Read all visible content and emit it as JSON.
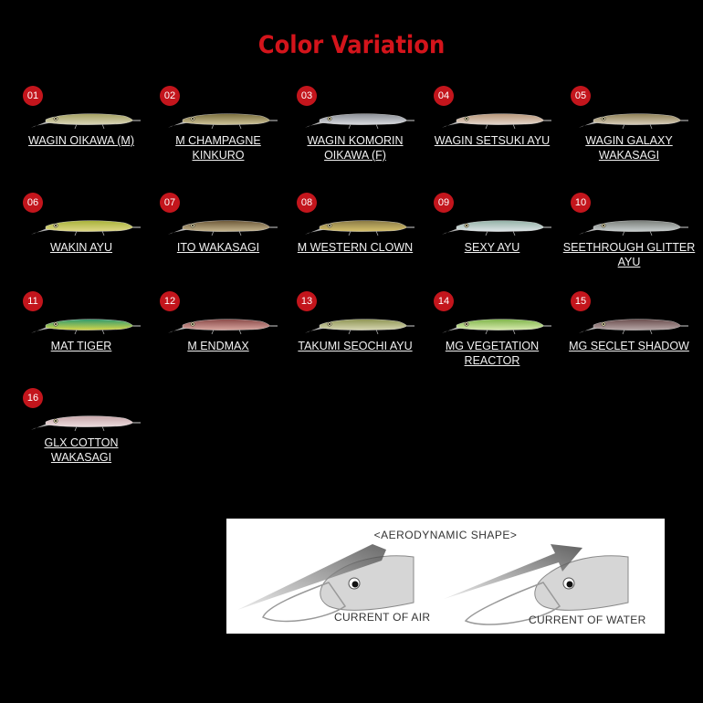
{
  "title": "Color Variation",
  "items": [
    {
      "num": "01",
      "name": "WAGIN OIKAWA (M)",
      "back": "#a4a060",
      "belly": "#d9d5b8"
    },
    {
      "num": "02",
      "name": "M CHAMPAGNE KINKURO",
      "back": "#7a6e3c",
      "belly": "#cfc49a"
    },
    {
      "num": "03",
      "name": "WAGIN KOMORIN OIKAWA (F)",
      "back": "#8a8e95",
      "belly": "#d9dbe0"
    },
    {
      "num": "04",
      "name": "WAGIN SETSUKI AYU",
      "back": "#b89678",
      "belly": "#e4d6cc"
    },
    {
      "num": "05",
      "name": "WAGIN GALAXY WAKASAGI",
      "back": "#8e8055",
      "belly": "#d8cdb9"
    },
    {
      "num": "06",
      "name": "WAKIN AYU",
      "back": "#a8b23a",
      "belly": "#e0d98a"
    },
    {
      "num": "07",
      "name": "ITO WAKASAGI",
      "back": "#6e5a3a",
      "belly": "#c7b790"
    },
    {
      "num": "08",
      "name": "M WESTERN CLOWN",
      "back": "#8a7a45",
      "belly": "#d8c36e"
    },
    {
      "num": "09",
      "name": "SEXY AYU",
      "back": "#93b1a6",
      "belly": "#dfe5e8"
    },
    {
      "num": "10",
      "name": "SEETHROUGH GLITTER AYU",
      "back": "#7a7f7a",
      "belly": "#c9cfcf"
    },
    {
      "num": "11",
      "name": "MAT TIGER",
      "back": "#2f9a6e",
      "belly": "#d7d64a"
    },
    {
      "num": "12",
      "name": "M ENDMAX",
      "back": "#8a4a48",
      "belly": "#d8a6a0"
    },
    {
      "num": "13",
      "name": "TAKUMI SEOCHI AYU",
      "back": "#8f9554",
      "belly": "#d6d6b2"
    },
    {
      "num": "14",
      "name": "MG VEGETATION REACTOR",
      "back": "#7fb54a",
      "belly": "#d9eab0"
    },
    {
      "num": "15",
      "name": "MG SECLET SHADOW",
      "back": "#6b4e4e",
      "belly": "#b8a8a8"
    },
    {
      "num": "16",
      "name": "GLX COTTON WAKASAGI",
      "back": "#c8a7aa",
      "belly": "#ecdcde"
    }
  ],
  "diagram": {
    "title": "<AERODYNAMIC SHAPE>",
    "left_label": "CURRENT OF AIR",
    "right_label": "CURRENT OF WATER"
  }
}
